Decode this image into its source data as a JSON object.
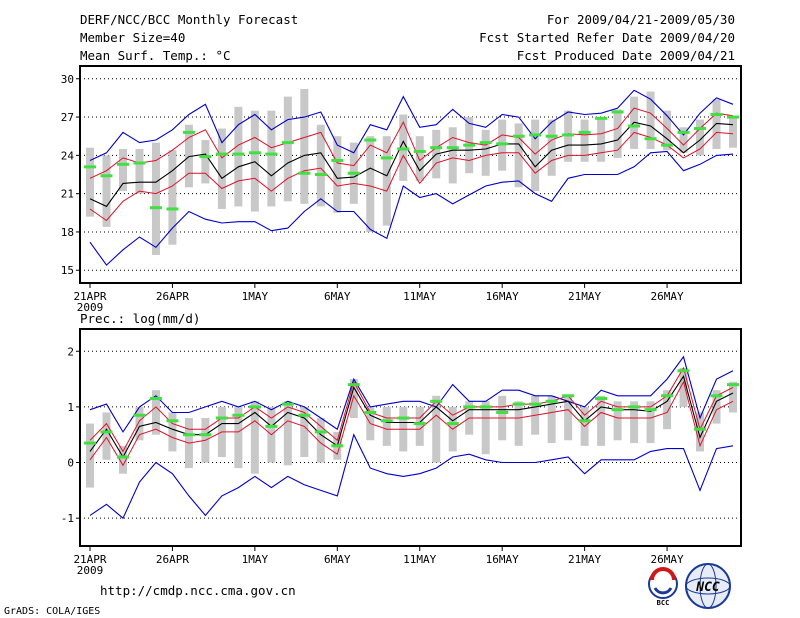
{
  "header": {
    "title": "DERF/NCC/BCC Monthly Forecast",
    "member_size": "Member Size=40",
    "variable": "Mean Surf. Temp.: °C",
    "period": "For 2009/04/21-2009/05/30",
    "started": "Fcst Started Refer Date 2009/04/20",
    "produced": "Fcst Produced Date 2009/04/21",
    "precip_label": "Prec.: log(mm/d)"
  },
  "footer": {
    "url": "http://cmdp.ncc.cma.gov.cn",
    "credit": "GrADS: COLA/IGES",
    "bcc_logo": "BCC",
    "ncc_logo": "NCC"
  },
  "colors": {
    "bar": "#c8c8c8",
    "ensemble_mean": "#000000",
    "spread": "#e0102a",
    "extreme": "#0000cc",
    "median": "#40e040"
  },
  "chart_data": [
    {
      "type": "line",
      "title": "Mean Surf. Temp.: °C",
      "x_tick_labels": [
        "21APR",
        "26APR",
        "1MAY",
        "6MAY",
        "11MAY",
        "16MAY",
        "21MAY",
        "26MAY"
      ],
      "x_tick_days": [
        0,
        5,
        10,
        15,
        20,
        25,
        30,
        35
      ],
      "x_year_label": "2009",
      "ylim": [
        14,
        31
      ],
      "y_ticks": [
        15,
        18,
        21,
        24,
        27,
        30
      ],
      "days": 40,
      "series": [
        {
          "name": "max",
          "values": [
            23.6,
            24.2,
            25.8,
            25.0,
            25.2,
            26.0,
            27.2,
            28.0,
            25.0,
            26.4,
            27.2,
            26.0,
            26.8,
            27.0,
            27.4,
            24.8,
            24.2,
            26.4,
            26.0,
            28.6,
            26.2,
            26.4,
            27.6,
            26.5,
            26.2,
            27.2,
            27.0,
            25.3,
            26.6,
            27.4,
            27.2,
            27.3,
            27.7,
            29.1,
            28.4,
            27.1,
            25.6,
            27.3,
            28.5,
            28.0
          ]
        },
        {
          "name": "upper",
          "values": [
            22.2,
            22.8,
            23.8,
            23.4,
            23.6,
            24.4,
            25.4,
            26.0,
            23.8,
            24.8,
            25.4,
            24.6,
            25.0,
            25.4,
            25.8,
            23.4,
            23.2,
            24.8,
            24.2,
            26.6,
            23.6,
            24.6,
            25.4,
            25.0,
            24.8,
            25.6,
            25.4,
            24.1,
            25.2,
            25.7,
            25.6,
            25.7,
            26.1,
            27.7,
            27.3,
            26.1,
            24.8,
            26.1,
            27.3,
            27.1
          ]
        },
        {
          "name": "mean",
          "values": [
            20.6,
            20.0,
            21.8,
            21.9,
            21.9,
            22.8,
            23.9,
            24.1,
            22.2,
            23.1,
            23.5,
            22.4,
            23.4,
            24.0,
            24.2,
            22.2,
            22.3,
            23.0,
            22.4,
            25.1,
            22.8,
            24.1,
            24.4,
            24.4,
            24.5,
            24.9,
            24.9,
            23.1,
            24.4,
            24.8,
            24.8,
            24.9,
            25.2,
            26.6,
            26.3,
            25.3,
            24.2,
            25.2,
            26.5,
            26.4
          ]
        },
        {
          "name": "lower",
          "values": [
            19.8,
            18.9,
            20.4,
            21.2,
            21.0,
            21.6,
            22.6,
            22.6,
            21.4,
            22.0,
            22.2,
            21.2,
            22.2,
            22.8,
            23.0,
            21.6,
            21.8,
            21.6,
            21.2,
            24.0,
            21.8,
            23.4,
            23.8,
            23.6,
            24.0,
            24.2,
            24.2,
            22.6,
            23.6,
            24.0,
            24.0,
            24.2,
            24.4,
            25.8,
            25.4,
            24.8,
            23.8,
            24.5,
            25.8,
            25.7
          ]
        },
        {
          "name": "min",
          "values": [
            17.2,
            15.4,
            16.6,
            17.6,
            16.8,
            18.3,
            19.6,
            19.0,
            18.7,
            18.8,
            18.8,
            18.1,
            18.3,
            19.6,
            20.6,
            19.6,
            19.6,
            18.2,
            17.5,
            21.6,
            20.7,
            21.0,
            20.2,
            20.9,
            21.6,
            21.9,
            22.0,
            21.0,
            20.4,
            22.2,
            22.5,
            22.5,
            22.5,
            23.1,
            24.2,
            24.3,
            22.8,
            23.3,
            24.0,
            24.1
          ]
        },
        {
          "name": "median",
          "values": [
            23.1,
            22.4,
            23.3,
            23.4,
            19.9,
            19.8,
            25.8,
            23.9,
            24.1,
            24.1,
            24.2,
            24.1,
            25.0,
            22.6,
            22.5,
            23.6,
            22.6,
            25.2,
            23.8,
            24.5,
            24.3,
            24.6,
            24.6,
            24.8,
            25.0,
            24.9,
            25.5,
            25.6,
            25.5,
            25.6,
            25.8,
            26.9,
            27.4,
            26.3,
            25.3,
            24.8,
            25.8,
            26.1,
            27.2,
            27.0
          ]
        },
        {
          "name": "box_top",
          "values": [
            24.6,
            24.0,
            24.5,
            24.5,
            25.0,
            24.4,
            26.4,
            25.2,
            26.1,
            27.8,
            27.5,
            27.5,
            28.6,
            29.2,
            26.4,
            25.5,
            25.0,
            25.5,
            25.5,
            27.2,
            25.5,
            26.0,
            26.2,
            27.0,
            26.0,
            26.8,
            26.5,
            26.8,
            26.8,
            27.5,
            26.8,
            26.8,
            27.6,
            28.6,
            29.0,
            27.5,
            26.2,
            26.8,
            28.4,
            27.0
          ]
        },
        {
          "name": "box_bottom",
          "values": [
            19.2,
            18.4,
            21.2,
            21.0,
            16.2,
            17.0,
            21.5,
            21.8,
            19.8,
            20.0,
            19.6,
            20.0,
            20.4,
            20.2,
            20.0,
            19.5,
            20.2,
            18.0,
            18.5,
            22.0,
            22.0,
            22.2,
            21.8,
            22.6,
            22.4,
            22.8,
            21.5,
            21.2,
            22.4,
            23.5,
            23.5,
            23.5,
            23.8,
            24.5,
            24.5,
            24.4,
            24.2,
            24.0,
            24.5,
            24.6
          ]
        }
      ]
    },
    {
      "type": "line",
      "title": "Prec.: log(mm/d)",
      "x_tick_labels": [
        "21APR",
        "26APR",
        "1MAY",
        "6MAY",
        "11MAY",
        "16MAY",
        "21MAY",
        "26MAY"
      ],
      "x_tick_days": [
        0,
        5,
        10,
        15,
        20,
        25,
        30,
        35
      ],
      "x_year_label": "2009",
      "ylim": [
        -1.5,
        2.4
      ],
      "y_ticks": [
        -1,
        0,
        1,
        2
      ],
      "days": 40,
      "series": [
        {
          "name": "max",
          "values": [
            0.95,
            1.05,
            0.55,
            1.0,
            1.2,
            0.9,
            0.9,
            1.0,
            1.1,
            1.0,
            1.1,
            0.95,
            1.1,
            1.0,
            0.8,
            0.6,
            1.5,
            1.0,
            1.05,
            1.1,
            1.1,
            1.0,
            1.4,
            1.1,
            1.1,
            1.3,
            1.3,
            1.2,
            1.2,
            1.1,
            1.0,
            1.3,
            1.2,
            1.2,
            1.2,
            1.5,
            1.9,
            0.8,
            1.5,
            1.65
          ]
        },
        {
          "name": "upper",
          "values": [
            0.4,
            0.7,
            0.2,
            0.75,
            1.0,
            0.7,
            0.6,
            0.6,
            0.8,
            0.8,
            1.0,
            0.8,
            1.0,
            0.9,
            0.65,
            0.4,
            1.45,
            0.9,
            0.8,
            0.8,
            0.8,
            1.1,
            0.85,
            1.0,
            1.0,
            1.0,
            1.05,
            1.05,
            1.1,
            1.2,
            0.85,
            1.1,
            1.0,
            1.0,
            1.0,
            1.2,
            1.7,
            0.6,
            1.2,
            1.35
          ]
        },
        {
          "name": "mean",
          "values": [
            0.2,
            0.6,
            0.1,
            0.65,
            0.72,
            0.6,
            0.5,
            0.5,
            0.7,
            0.7,
            0.9,
            0.65,
            0.9,
            0.8,
            0.5,
            0.3,
            1.35,
            0.85,
            0.72,
            0.72,
            0.72,
            1.0,
            0.75,
            0.95,
            0.95,
            0.95,
            0.95,
            1.0,
            1.05,
            1.1,
            0.75,
            1.0,
            0.95,
            0.95,
            0.92,
            1.1,
            1.55,
            0.45,
            1.1,
            1.25
          ]
        },
        {
          "name": "lower",
          "values": [
            0.05,
            0.45,
            -0.05,
            0.5,
            0.6,
            0.45,
            0.35,
            0.4,
            0.55,
            0.55,
            0.75,
            0.5,
            0.75,
            0.65,
            0.35,
            0.15,
            1.2,
            0.7,
            0.6,
            0.6,
            0.6,
            0.85,
            0.6,
            0.8,
            0.8,
            0.8,
            0.8,
            0.85,
            0.9,
            0.95,
            0.65,
            0.9,
            0.8,
            0.8,
            0.8,
            0.9,
            1.45,
            0.3,
            0.95,
            1.1
          ]
        },
        {
          "name": "min",
          "values": [
            -0.95,
            -0.75,
            -1.0,
            -0.35,
            0.0,
            -0.2,
            -0.6,
            -0.95,
            -0.6,
            -0.45,
            -0.25,
            -0.45,
            -0.25,
            -0.4,
            -0.5,
            -0.6,
            0.5,
            -0.1,
            -0.2,
            -0.25,
            -0.2,
            -0.1,
            0.1,
            0.15,
            0.05,
            0.0,
            0.0,
            0.0,
            0.05,
            0.1,
            -0.2,
            0.05,
            0.05,
            0.05,
            0.2,
            0.25,
            0.25,
            -0.5,
            0.25,
            0.3
          ]
        },
        {
          "name": "median",
          "values": [
            0.35,
            0.55,
            0.1,
            0.85,
            1.15,
            0.75,
            0.5,
            0.5,
            0.8,
            0.85,
            1.0,
            0.65,
            1.05,
            0.85,
            0.55,
            0.3,
            1.4,
            0.9,
            0.75,
            0.8,
            0.7,
            1.1,
            0.7,
            1.0,
            1.0,
            0.9,
            1.05,
            1.05,
            1.1,
            1.2,
            0.75,
            1.15,
            0.95,
            1.0,
            0.95,
            1.2,
            1.65,
            0.6,
            1.2,
            1.4
          ]
        },
        {
          "name": "box_top",
          "values": [
            0.7,
            0.9,
            0.3,
            1.0,
            1.3,
            0.9,
            0.8,
            0.8,
            1.0,
            1.0,
            1.1,
            1.0,
            1.1,
            1.0,
            0.8,
            0.55,
            1.5,
            1.0,
            1.0,
            1.0,
            1.0,
            1.2,
            1.0,
            1.1,
            1.1,
            1.2,
            1.1,
            1.2,
            1.2,
            1.2,
            1.0,
            1.2,
            1.1,
            1.1,
            1.1,
            1.3,
            1.7,
            0.9,
            1.3,
            1.45
          ]
        },
        {
          "name": "box_bottom",
          "values": [
            -0.45,
            0.05,
            -0.2,
            0.4,
            0.5,
            0.2,
            -0.1,
            0.0,
            0.1,
            -0.1,
            -0.2,
            0.0,
            -0.05,
            0.1,
            0.0,
            0.05,
            0.8,
            0.4,
            0.3,
            0.2,
            0.3,
            0.0,
            0.2,
            0.5,
            0.15,
            0.4,
            0.3,
            0.5,
            0.35,
            0.4,
            0.3,
            0.3,
            0.4,
            0.35,
            0.35,
            0.6,
            1.0,
            0.2,
            0.7,
            0.9
          ]
        }
      ]
    }
  ]
}
